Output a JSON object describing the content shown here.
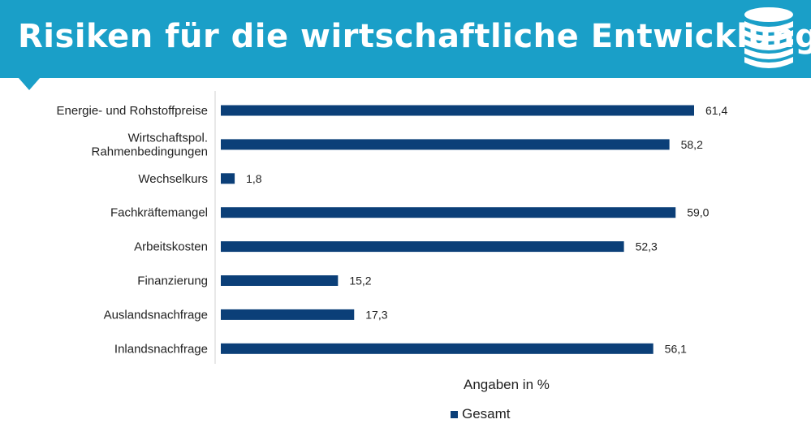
{
  "header": {
    "title": "Risiken für die wirtschaftliche Entwicklung",
    "icon": "coins-stack-icon",
    "color": "#1a9fc8"
  },
  "chart_data": {
    "type": "bar",
    "orientation": "horizontal",
    "categories": [
      [
        "Energie- und Rohstoffpreise"
      ],
      [
        "Wirtschaftspol.",
        "Rahmenbedingungen"
      ],
      [
        "Wechselkurs"
      ],
      [
        "Fachkräftemangel"
      ],
      [
        "Arbeitskosten"
      ],
      [
        "Finanzierung"
      ],
      [
        "Auslandsnachfrage"
      ],
      [
        "Inlandsnachfrage"
      ]
    ],
    "series": [
      {
        "name": "Gesamt",
        "color": "#0b3f78",
        "values": [
          61.4,
          58.2,
          1.8,
          59.0,
          52.3,
          15.2,
          17.3,
          56.1
        ],
        "labels": [
          "61,4",
          "58,2",
          "1,8",
          "59,0",
          "52,3",
          "15,2",
          "17,3",
          "56,1"
        ]
      }
    ],
    "xlabel": "Angaben in %",
    "xlim": [
      0,
      61.4
    ],
    "legend_position": "bottom",
    "grid": false
  }
}
